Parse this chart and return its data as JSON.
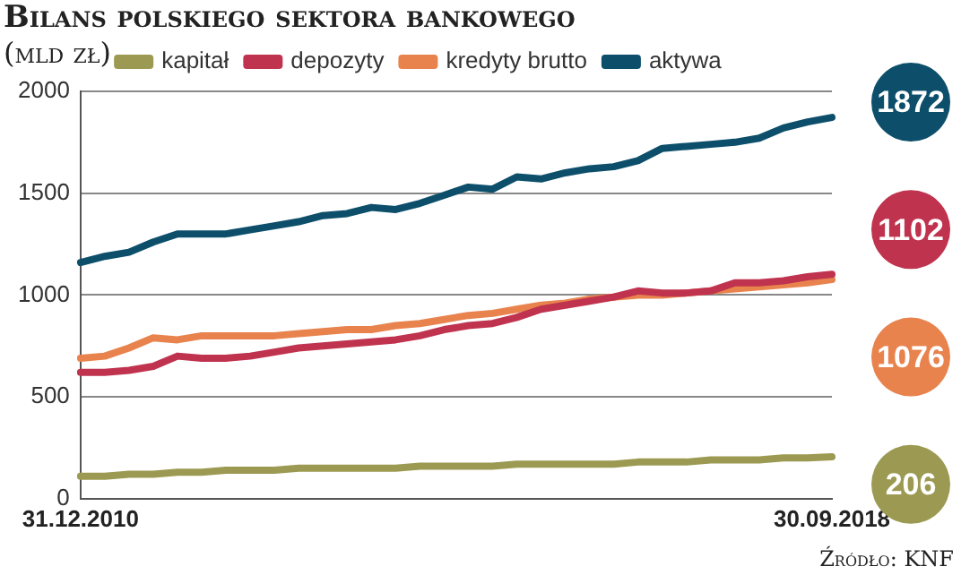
{
  "chart_data": {
    "type": "line",
    "title": "Bilans polskiego sektora bankowego",
    "subtitle": "(mld zł)",
    "categories": [
      "31.12.2010",
      null,
      null,
      null,
      null,
      null,
      null,
      null,
      null,
      null,
      null,
      null,
      null,
      null,
      null,
      null,
      null,
      null,
      null,
      null,
      null,
      null,
      null,
      null,
      null,
      null,
      null,
      null,
      null,
      null,
      null,
      "30.09.2018"
    ],
    "series": [
      {
        "name": "kapitał",
        "color": "#9c9a52",
        "values": [
          110,
          110,
          120,
          120,
          130,
          130,
          140,
          140,
          140,
          150,
          150,
          150,
          150,
          150,
          160,
          160,
          160,
          160,
          170,
          170,
          170,
          170,
          170,
          180,
          180,
          180,
          190,
          190,
          190,
          200,
          200,
          206
        ],
        "value_labels": [
          null,
          null,
          null,
          null,
          null,
          null,
          null,
          null,
          null,
          null,
          null,
          null,
          null,
          null,
          null,
          null,
          null,
          null,
          null,
          null,
          null,
          null,
          null,
          null,
          null,
          null,
          null,
          null,
          null,
          null,
          null,
          "206"
        ]
      },
      {
        "name": "depozyty",
        "color": "#c0334f",
        "values": [
          620,
          620,
          630,
          650,
          700,
          690,
          690,
          700,
          720,
          740,
          750,
          760,
          770,
          780,
          800,
          830,
          850,
          860,
          890,
          930,
          950,
          970,
          990,
          1020,
          1010,
          1010,
          1020,
          1060,
          1060,
          1070,
          1090,
          1102
        ],
        "value_labels": [
          null,
          null,
          null,
          null,
          null,
          null,
          null,
          null,
          null,
          null,
          null,
          null,
          null,
          null,
          null,
          null,
          null,
          null,
          null,
          null,
          null,
          null,
          null,
          null,
          null,
          null,
          null,
          null,
          null,
          null,
          null,
          "1102"
        ]
      },
      {
        "name": "kredyty brutto",
        "color": "#e8834e",
        "values": [
          690,
          700,
          740,
          790,
          780,
          800,
          800,
          800,
          800,
          810,
          820,
          830,
          830,
          850,
          860,
          880,
          900,
          910,
          930,
          950,
          960,
          980,
          990,
          1000,
          1000,
          1010,
          1020,
          1030,
          1040,
          1050,
          1060,
          1076
        ],
        "value_labels": [
          null,
          null,
          null,
          null,
          null,
          null,
          null,
          null,
          null,
          null,
          null,
          null,
          null,
          null,
          null,
          null,
          null,
          null,
          null,
          null,
          null,
          null,
          null,
          null,
          null,
          null,
          null,
          null,
          null,
          null,
          null,
          "1076"
        ]
      },
      {
        "name": "aktywa",
        "color": "#0d4f6b",
        "values": [
          1160,
          1190,
          1210,
          1260,
          1300,
          1300,
          1300,
          1320,
          1340,
          1360,
          1390,
          1400,
          1430,
          1420,
          1450,
          1490,
          1530,
          1520,
          1580,
          1570,
          1600,
          1620,
          1630,
          1660,
          1720,
          1730,
          1740,
          1750,
          1770,
          1820,
          1850,
          1872
        ],
        "value_labels": [
          null,
          null,
          null,
          null,
          null,
          null,
          null,
          null,
          null,
          null,
          null,
          null,
          null,
          null,
          null,
          null,
          null,
          null,
          null,
          null,
          null,
          null,
          null,
          null,
          null,
          null,
          null,
          null,
          null,
          null,
          null,
          "1872"
        ]
      }
    ],
    "ylim": [
      0,
      2000
    ],
    "yticks": [
      0,
      500,
      1000,
      1500,
      2000
    ],
    "grid": "y",
    "legend": "top",
    "marker": "none",
    "line_style": "solid",
    "annotations": [
      "Źródło: KNF"
    ]
  }
}
